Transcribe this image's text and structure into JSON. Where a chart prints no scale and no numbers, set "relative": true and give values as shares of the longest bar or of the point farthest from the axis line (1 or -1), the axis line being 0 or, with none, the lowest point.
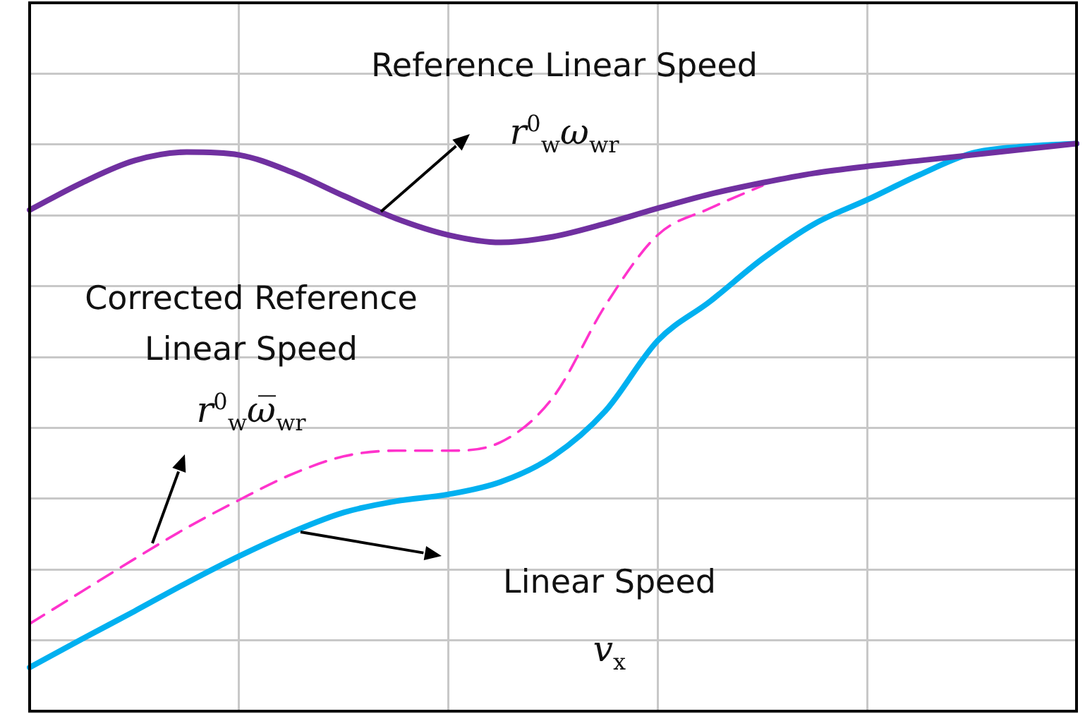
{
  "chart_data": {
    "type": "line",
    "relative": true,
    "grid": true,
    "legend": false,
    "marker": "none",
    "line_style": "solid",
    "categories": [
      null,
      null,
      null,
      null,
      null,
      null,
      null,
      null,
      null,
      null,
      null,
      null,
      null,
      null,
      null,
      null,
      null,
      null,
      null,
      null,
      null
    ],
    "series": [
      {
        "color": "#7030a0",
        "values": [
          0.883,
          0.931,
          0.97,
          0.985,
          0.98,
          0.95,
          0.908,
          0.868,
          0.839,
          0.826,
          0.836,
          0.859,
          0.886,
          0.911,
          0.931,
          0.948,
          0.96,
          0.97,
          0.98,
          0.99,
          1
        ]
      },
      {
        "color": "#00b0f0",
        "values": [
          0.077,
          0.127,
          0.176,
          0.226,
          0.273,
          0.315,
          0.35,
          0.37,
          0.382,
          0.404,
          0.449,
          0.529,
          0.653,
          0.722,
          0.797,
          0.859,
          0.901,
          0.945,
          0.983,
          0.995,
          1
        ]
      },
      {
        "color": "#ff33cc",
        "line_style": "dashed",
        "values": [
          0.154,
          0.211,
          0.268,
          0.323,
          0.372,
          0.417,
          0.449,
          0.459,
          0.459,
          0.474,
          0.553,
          0.715,
          0.839,
          0.886,
          0.926,
          null,
          null,
          null,
          null,
          null,
          null
        ]
      }
    ],
    "annotations": [
      "Reference Linear Speed",
      "r$^{0}$$_{w}$ω$_{wr}$",
      "Corrected Reference Linear Speed",
      "r$^{0}$$_{w}$ω̅$_{wr}$",
      "Linear Speed",
      "v$_{x}$"
    ]
  }
}
